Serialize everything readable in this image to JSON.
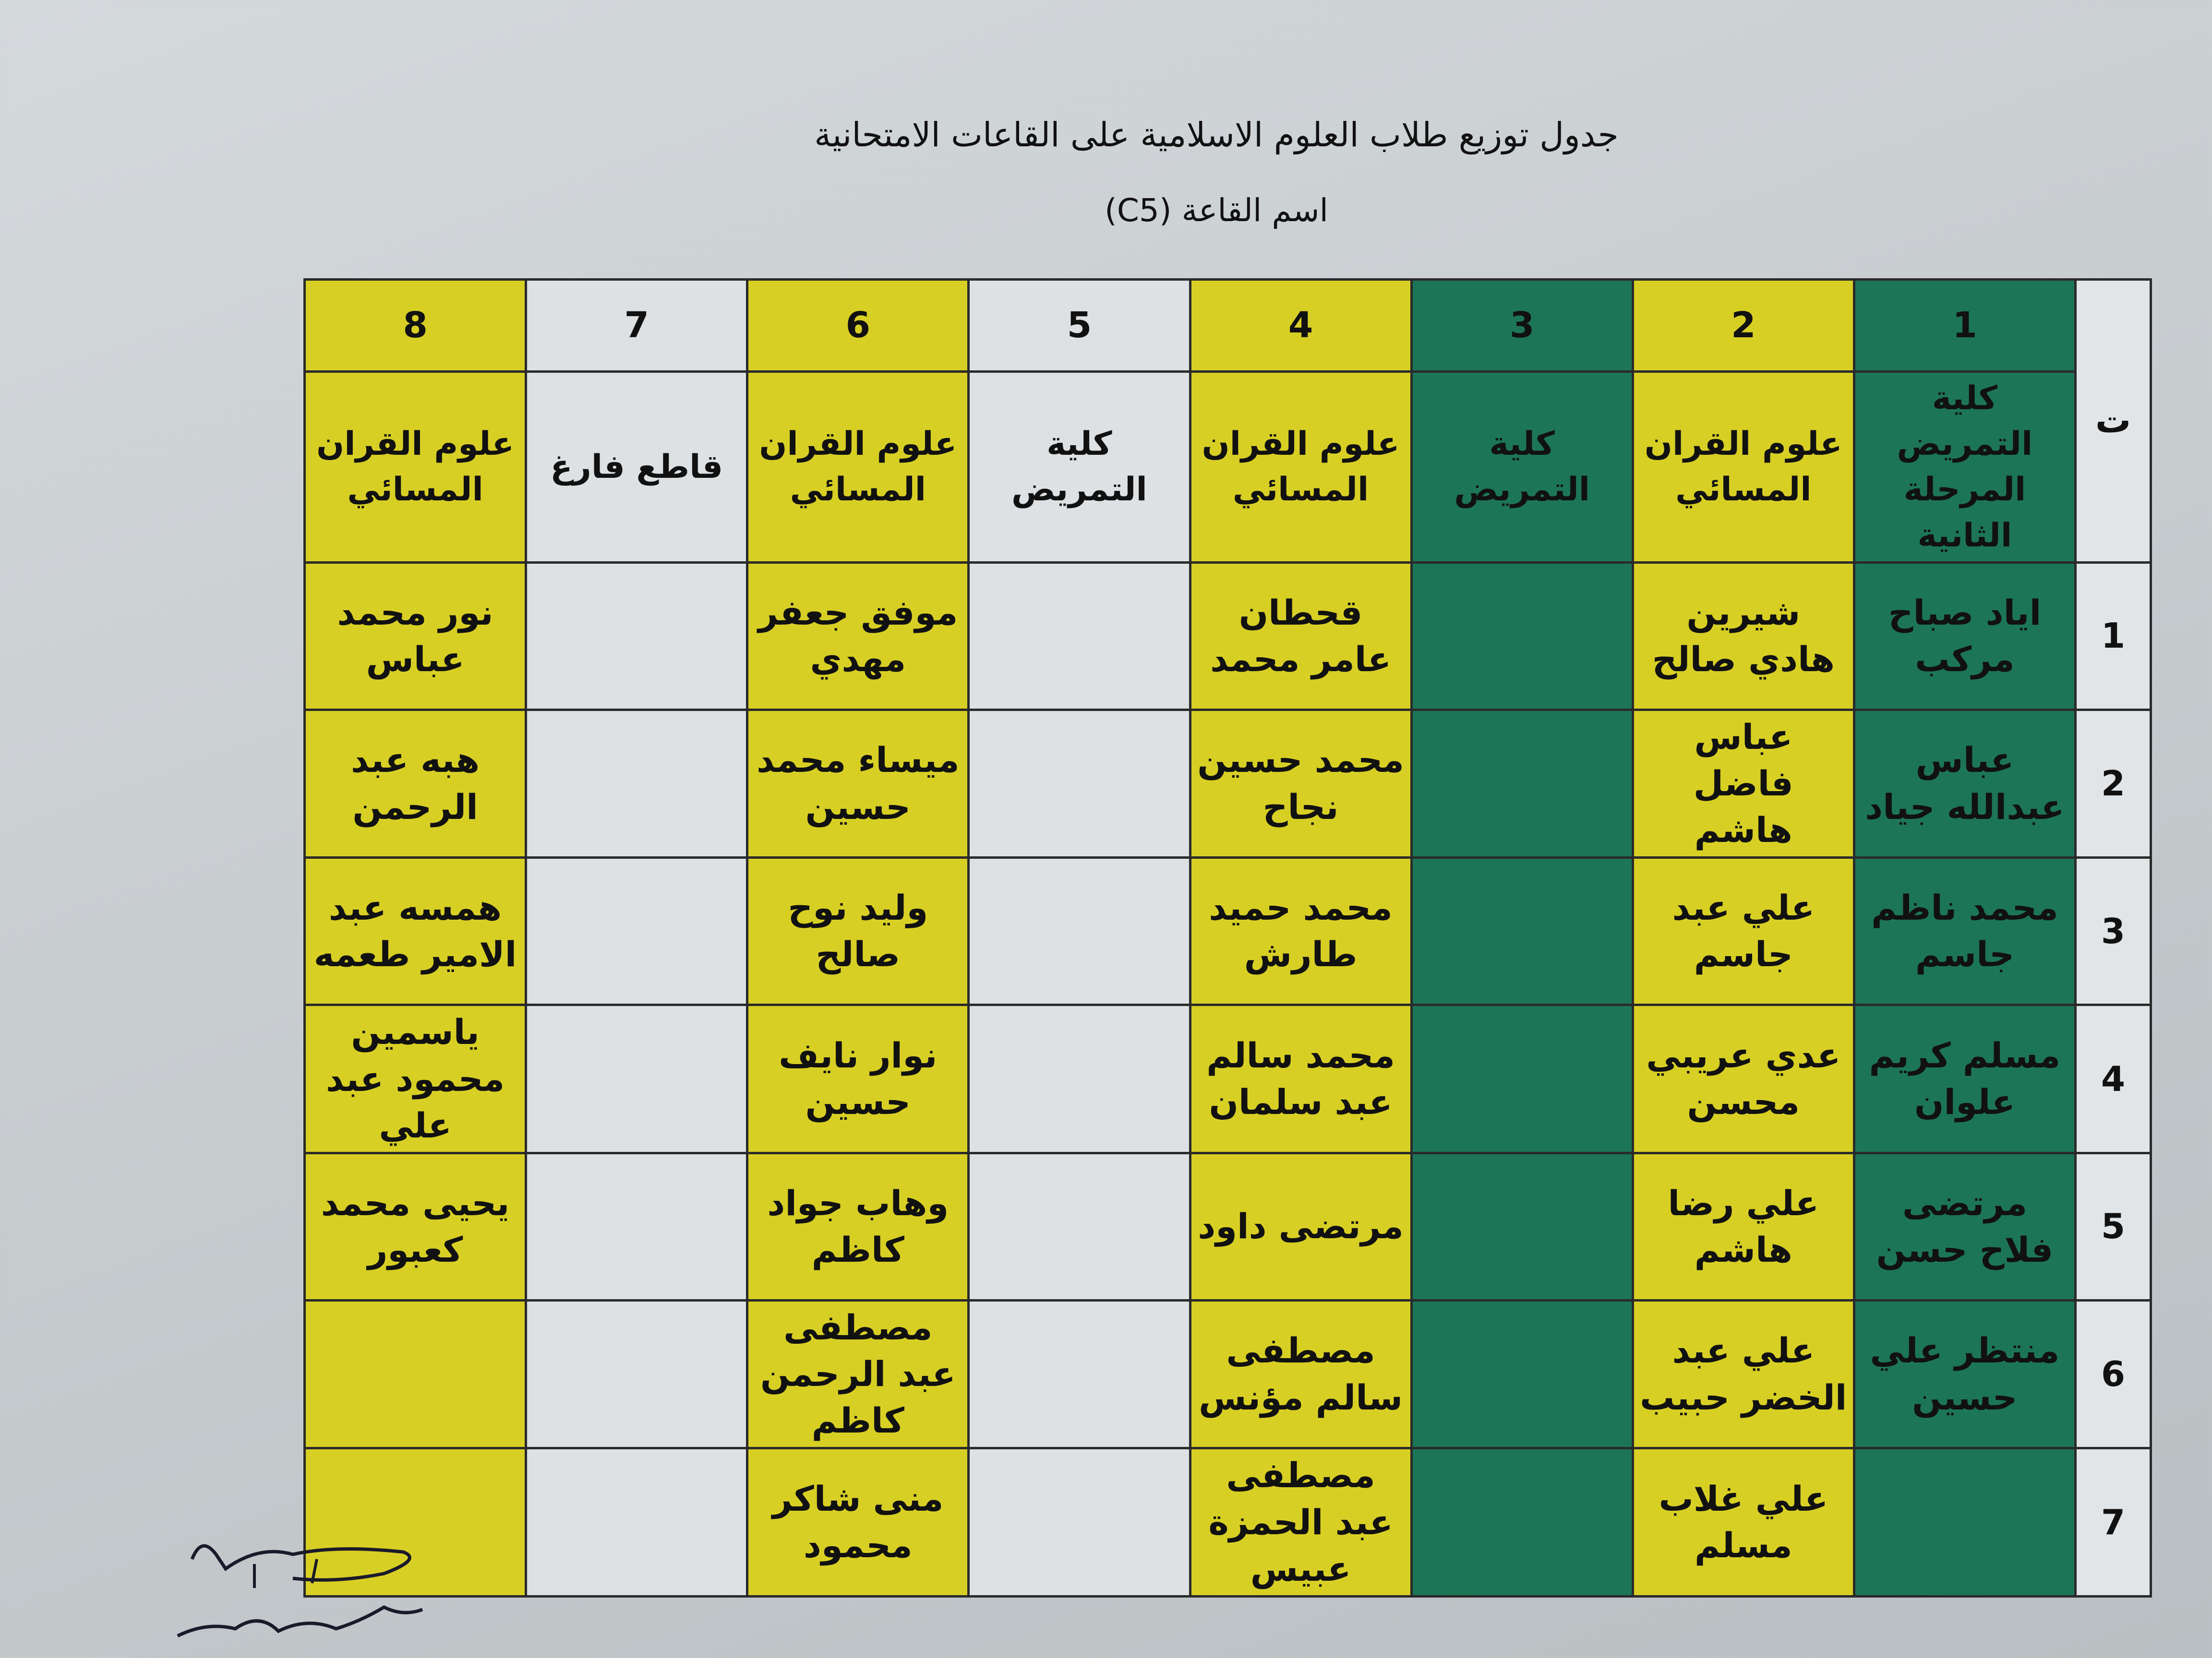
{
  "title": "جدول توزيع طلاب  العلوم الاسلامية على القاعات الامتحانية",
  "subtitle": "اسم القاعة (C5)",
  "colors": {
    "yellow": "#d8cf25",
    "green": "#1d7558",
    "blank": "#dde1e3"
  },
  "table": {
    "index_header": "ت",
    "column_numbers": [
      "1",
      "2",
      "3",
      "4",
      "5",
      "6",
      "7",
      "8"
    ],
    "column_colors": [
      "green",
      "yellow",
      "green",
      "yellow",
      "blank",
      "yellow",
      "blank",
      "yellow"
    ],
    "column_headers": [
      "كلية التمريض المرحلة الثانية",
      "علوم القران المسائي",
      "كلية التمريض",
      "علوم القران المسائي",
      "كلية التمريض",
      "علوم القران المسائي",
      "قاطع فارغ",
      "علوم القران المسائي"
    ],
    "rows": [
      {
        "index": "1",
        "cells": [
          "اياد صباح مركب",
          "شيرين هادي صالح",
          "",
          "قحطان عامر محمد",
          "",
          "موفق جعفر مهدي",
          "",
          "نور محمد عباس"
        ]
      },
      {
        "index": "2",
        "cells": [
          "عباس عبدالله جياد",
          "عباس فاضل هاشم",
          "",
          "محمد حسين نجاح",
          "",
          "ميساء محمد حسين",
          "",
          "هبه عبد الرحمن"
        ]
      },
      {
        "index": "3",
        "cells": [
          "محمد ناظم جاسم",
          "علي عبد جاسم",
          "",
          "محمد حميد طارش",
          "",
          "وليد نوح صالح",
          "",
          "همسه عبد الامير طعمه"
        ]
      },
      {
        "index": "4",
        "cells": [
          "مسلم كريم علوان",
          "عدي عريبي محسن",
          "",
          "محمد سالم عبد سلمان",
          "",
          "نوار نايف حسين",
          "",
          "ياسمين محمود عبد علي"
        ]
      },
      {
        "index": "5",
        "cells": [
          "مرتضى فلاح حسن",
          "علي رضا هاشم",
          "",
          "مرتضى داود",
          "",
          "وهاب جواد كاظم",
          "",
          "يحيى محمد كعبور"
        ]
      },
      {
        "index": "6",
        "cells": [
          "منتظر علي حسين",
          "علي عبد الخضر حبيب",
          "",
          "مصطفى سالم مؤنس",
          "",
          "مصطفى عبد الرحمن كاظم",
          "",
          ""
        ]
      },
      {
        "index": "7",
        "cells": [
          "",
          "علي غلاب مسلم",
          "",
          "مصطفى عبد الحمزة عبيس",
          "",
          "منى شاكر محمود",
          "",
          ""
        ]
      }
    ]
  },
  "signature": "ا.م.د حميد بلذر"
}
